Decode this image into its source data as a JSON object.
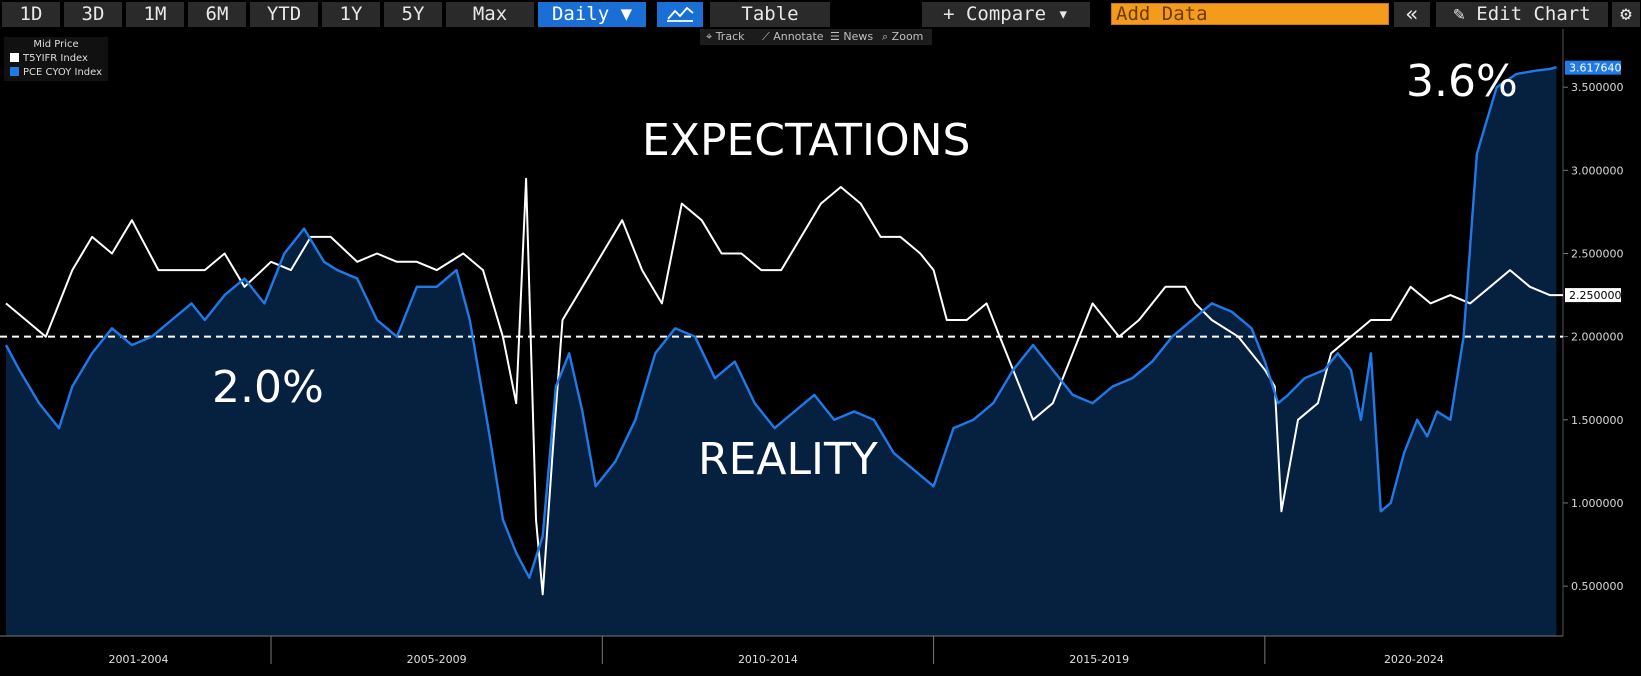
{
  "toolbar": {
    "ranges": [
      "1D",
      "3D",
      "1M",
      "6M",
      "YTD",
      "1Y",
      "5Y",
      "Max"
    ],
    "frequency": "Daily ▼",
    "chart_type_icon": "line-chart-icon",
    "table_label": "Table",
    "compare_label": "+ Compare ▾",
    "add_data_placeholder": "Add Data",
    "collapse_icon": "double-chevron-left-icon",
    "edit_chart_label": "Edit Chart",
    "edit_icon": "pencil-icon",
    "settings_icon": "gear-icon"
  },
  "subbar": {
    "track": "Track",
    "annotate": "Annotate",
    "news": "News",
    "zoom": "Zoom"
  },
  "legend": {
    "title": "Mid Price",
    "items": [
      {
        "label": "T5YIFR Index",
        "color": "#ffffff"
      },
      {
        "label": "PCE CYOY Index",
        "color": "#1f7ae8"
      }
    ]
  },
  "annotations": {
    "expectations": "EXPECTATIONS",
    "reality": "REALITY",
    "two_pct": "2.0%",
    "three_six_pct": "3.6%"
  },
  "colors": {
    "background": "#000000",
    "area_fill": "#06203f",
    "pce_line": "#1f7ae8",
    "t5yifr_line": "#ffffff",
    "accent": "#1a6fd6",
    "add_data": "#f59b1c"
  },
  "chart_data": {
    "type": "line",
    "ylim": [
      0.2,
      3.85
    ],
    "yticks": [
      "0.500000",
      "1.000000",
      "1.500000",
      "2.000000",
      "2.500000",
      "3.000000",
      "3.500000"
    ],
    "x_range": [
      2001,
      2024.5
    ],
    "x_sections": [
      "2001-2004",
      "2005-2009",
      "2010-2014",
      "2015-2019",
      "2020-2024"
    ],
    "reference_line": 2.0,
    "last_values": {
      "PCE CYOY Index": "3.617640",
      "T5YIFR Index": "2.250000"
    },
    "series": [
      {
        "name": "T5YIFR Index",
        "color": "#ffffff",
        "x": [
          2001.0,
          2001.3,
          2001.6,
          2002.0,
          2002.3,
          2002.6,
          2002.9,
          2003.3,
          2003.6,
          2004.0,
          2004.3,
          2004.6,
          2005.0,
          2005.3,
          2005.6,
          2005.9,
          2006.3,
          2006.6,
          2006.9,
          2007.2,
          2007.5,
          2007.9,
          2008.2,
          2008.5,
          2008.7,
          2008.85,
          2009.0,
          2009.1,
          2009.25,
          2009.4,
          2009.7,
          2010.0,
          2010.3,
          2010.6,
          2010.9,
          2011.2,
          2011.5,
          2011.8,
          2012.1,
          2012.4,
          2012.7,
          2013.0,
          2013.3,
          2013.6,
          2013.9,
          2014.2,
          2014.5,
          2014.8,
          2015.0,
          2015.2,
          2015.5,
          2015.8,
          2016.0,
          2016.2,
          2016.5,
          2016.8,
          2017.0,
          2017.4,
          2017.8,
          2018.1,
          2018.5,
          2018.8,
          2018.95,
          2019.2,
          2019.6,
          2020.0,
          2020.15,
          2020.25,
          2020.5,
          2020.8,
          2021.0,
          2021.3,
          2021.6,
          2021.9,
          2022.2,
          2022.5,
          2022.8,
          2023.1,
          2023.4,
          2023.7,
          2024.0,
          2024.3,
          2024.5
        ],
        "y": [
          2.2,
          2.1,
          2.0,
          2.4,
          2.6,
          2.5,
          2.7,
          2.4,
          2.4,
          2.4,
          2.5,
          2.3,
          2.45,
          2.4,
          2.6,
          2.6,
          2.45,
          2.5,
          2.45,
          2.45,
          2.4,
          2.5,
          2.4,
          2.0,
          1.6,
          2.95,
          0.9,
          0.45,
          1.3,
          2.1,
          2.3,
          2.5,
          2.7,
          2.4,
          2.2,
          2.8,
          2.7,
          2.5,
          2.5,
          2.4,
          2.4,
          2.6,
          2.8,
          2.9,
          2.8,
          2.6,
          2.6,
          2.5,
          2.4,
          2.1,
          2.1,
          2.2,
          2.0,
          1.8,
          1.5,
          1.6,
          1.8,
          2.2,
          2.0,
          2.1,
          2.3,
          2.3,
          2.2,
          2.1,
          2.0,
          1.8,
          1.7,
          0.95,
          1.5,
          1.6,
          1.9,
          2.0,
          2.1,
          2.1,
          2.3,
          2.2,
          2.25,
          2.2,
          2.3,
          2.4,
          2.3,
          2.25,
          2.25
        ]
      },
      {
        "name": "PCE CYOY Index",
        "color": "#1f7ae8",
        "x": [
          2001.0,
          2001.2,
          2001.5,
          2001.8,
          2002.0,
          2002.3,
          2002.6,
          2002.9,
          2003.2,
          2003.5,
          2003.8,
          2004.0,
          2004.3,
          2004.6,
          2004.9,
          2005.2,
          2005.5,
          2005.8,
          2006.0,
          2006.3,
          2006.6,
          2006.9,
          2007.2,
          2007.5,
          2007.8,
          2008.0,
          2008.3,
          2008.5,
          2008.7,
          2008.9,
          2009.1,
          2009.3,
          2009.5,
          2009.7,
          2009.9,
          2010.2,
          2010.5,
          2010.8,
          2011.1,
          2011.4,
          2011.7,
          2012.0,
          2012.3,
          2012.6,
          2012.9,
          2013.2,
          2013.5,
          2013.8,
          2014.1,
          2014.4,
          2014.7,
          2015.0,
          2015.3,
          2015.6,
          2015.9,
          2016.2,
          2016.5,
          2016.8,
          2017.1,
          2017.4,
          2017.7,
          2018.0,
          2018.3,
          2018.6,
          2018.9,
          2019.2,
          2019.5,
          2019.8,
          2020.0,
          2020.2,
          2020.35,
          2020.6,
          2020.9,
          2021.1,
          2021.3,
          2021.45,
          2021.6,
          2021.75,
          2021.9,
          2022.1,
          2022.3,
          2022.45,
          2022.6,
          2022.8,
          2023.0,
          2023.2,
          2023.5,
          2023.8,
          2024.1,
          2024.3,
          2024.4
        ],
        "y": [
          1.95,
          1.8,
          1.6,
          1.45,
          1.7,
          1.9,
          2.05,
          1.95,
          2.0,
          2.1,
          2.2,
          2.1,
          2.25,
          2.35,
          2.2,
          2.5,
          2.65,
          2.45,
          2.4,
          2.35,
          2.1,
          2.0,
          2.3,
          2.3,
          2.4,
          2.1,
          1.4,
          0.9,
          0.7,
          0.55,
          0.8,
          1.7,
          1.9,
          1.55,
          1.1,
          1.25,
          1.5,
          1.9,
          2.05,
          2.0,
          1.75,
          1.85,
          1.6,
          1.45,
          1.55,
          1.65,
          1.5,
          1.55,
          1.5,
          1.3,
          1.2,
          1.1,
          1.45,
          1.5,
          1.6,
          1.8,
          1.95,
          1.8,
          1.65,
          1.6,
          1.7,
          1.75,
          1.85,
          2.0,
          2.1,
          2.2,
          2.15,
          2.05,
          1.85,
          1.6,
          1.65,
          1.75,
          1.8,
          1.9,
          1.8,
          1.5,
          1.9,
          0.95,
          1.0,
          1.3,
          1.5,
          1.4,
          1.55,
          1.5,
          2.0,
          3.1,
          3.5,
          3.58,
          3.6,
          3.61,
          3.62
        ]
      }
    ]
  }
}
